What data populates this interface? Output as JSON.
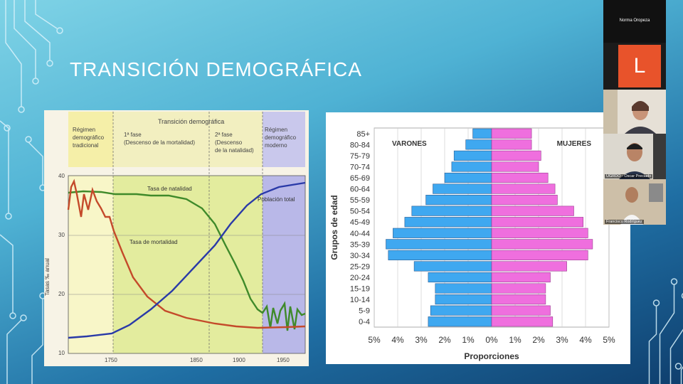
{
  "slide": {
    "title": "TRANSICIÓN DEMOGRÁFICA"
  },
  "participants": {
    "presenter_name": "Norma Oropeza",
    "avatar_letter": "L",
    "cam2_label": "UGRDO - Oscar Preciado",
    "cam3_label": "Francisco Rodríguez"
  },
  "left_chart": {
    "header_title": "Transición demográfica",
    "phases": [
      {
        "lines": [
          "Régimen",
          "demográfico",
          "tradicional"
        ]
      },
      {
        "lines": [
          "1ª fase",
          "(Descenso de la mortalidad)"
        ]
      },
      {
        "lines": [
          "2ª fase",
          "(Descenso",
          "de la natalidad)"
        ]
      },
      {
        "lines": [
          "Régimen",
          "demográfico",
          "moderno"
        ]
      }
    ],
    "ylabel": "Tasas ‰ anual",
    "yticks": [
      "10",
      "20",
      "30",
      "40"
    ],
    "xticks": [
      "1750",
      "1850",
      "1900",
      "1950"
    ],
    "series_labels": {
      "natalidad": "Tasa de natalidad",
      "mortalidad": "Tasa de mortalidad",
      "poblacion": "Población total"
    }
  },
  "chart_data": {
    "type": "bar",
    "title": "",
    "xlabel": "Proporciones",
    "ylabel": "Grupos de edad",
    "categories": [
      "85+",
      "80-84",
      "75-79",
      "70-74",
      "65-69",
      "60-64",
      "55-59",
      "50-54",
      "45-49",
      "40-44",
      "35-39",
      "30-34",
      "25-29",
      "20-24",
      "15-19",
      "10-14",
      "5-9",
      "0-4"
    ],
    "series": [
      {
        "name": "VARONES",
        "values": [
          0.8,
          1.1,
          1.6,
          1.7,
          2.0,
          2.5,
          2.8,
          3.4,
          3.7,
          4.2,
          4.5,
          4.4,
          3.3,
          2.7,
          2.4,
          2.4,
          2.6,
          2.7
        ]
      },
      {
        "name": "MUJERES",
        "values": [
          1.7,
          1.7,
          2.1,
          2.0,
          2.4,
          2.7,
          2.8,
          3.5,
          3.9,
          4.1,
          4.3,
          4.1,
          3.2,
          2.5,
          2.3,
          2.3,
          2.5,
          2.6
        ]
      }
    ],
    "xticks": [
      "5%",
      "4%",
      "3%",
      "2%",
      "1%",
      "0%",
      "1%",
      "2%",
      "3%",
      "4%",
      "5%"
    ],
    "xlim": [
      -5,
      5
    ],
    "colors": {
      "VARONES": "#3fa8f0",
      "MUJERES": "#ef6fde"
    }
  }
}
